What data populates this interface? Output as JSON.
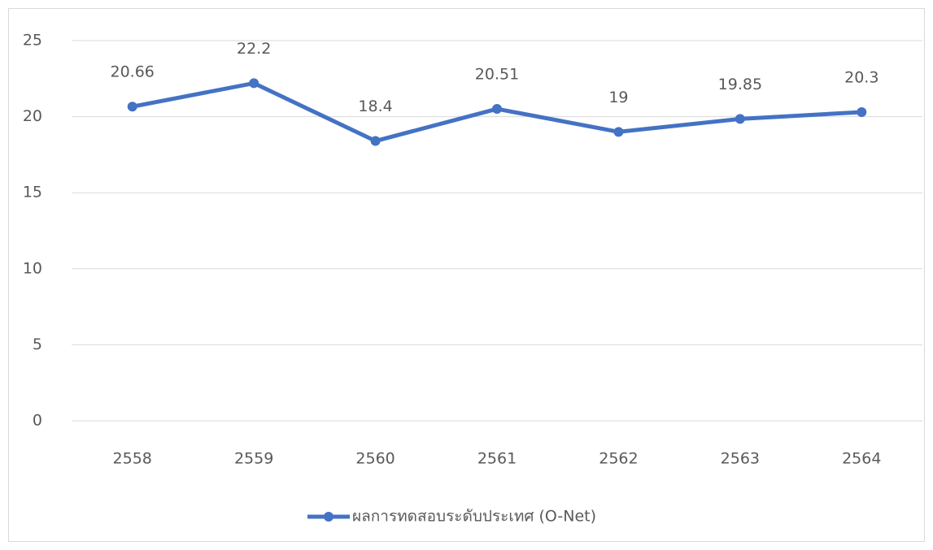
{
  "chart_data": {
    "type": "line",
    "categories": [
      "2558",
      "2559",
      "2560",
      "2561",
      "2562",
      "2563",
      "2564"
    ],
    "series": [
      {
        "name": "ผลการทดสอบระดับประเทศ (O-Net)",
        "color": "#4472c4",
        "values": [
          20.66,
          22.2,
          18.4,
          20.51,
          19,
          19.85,
          20.3
        ]
      }
    ],
    "ylim": [
      0,
      25
    ],
    "yticks": [
      0,
      5,
      10,
      15,
      20,
      25
    ],
    "grid": true,
    "legend": "bottom",
    "data_labels": true
  }
}
